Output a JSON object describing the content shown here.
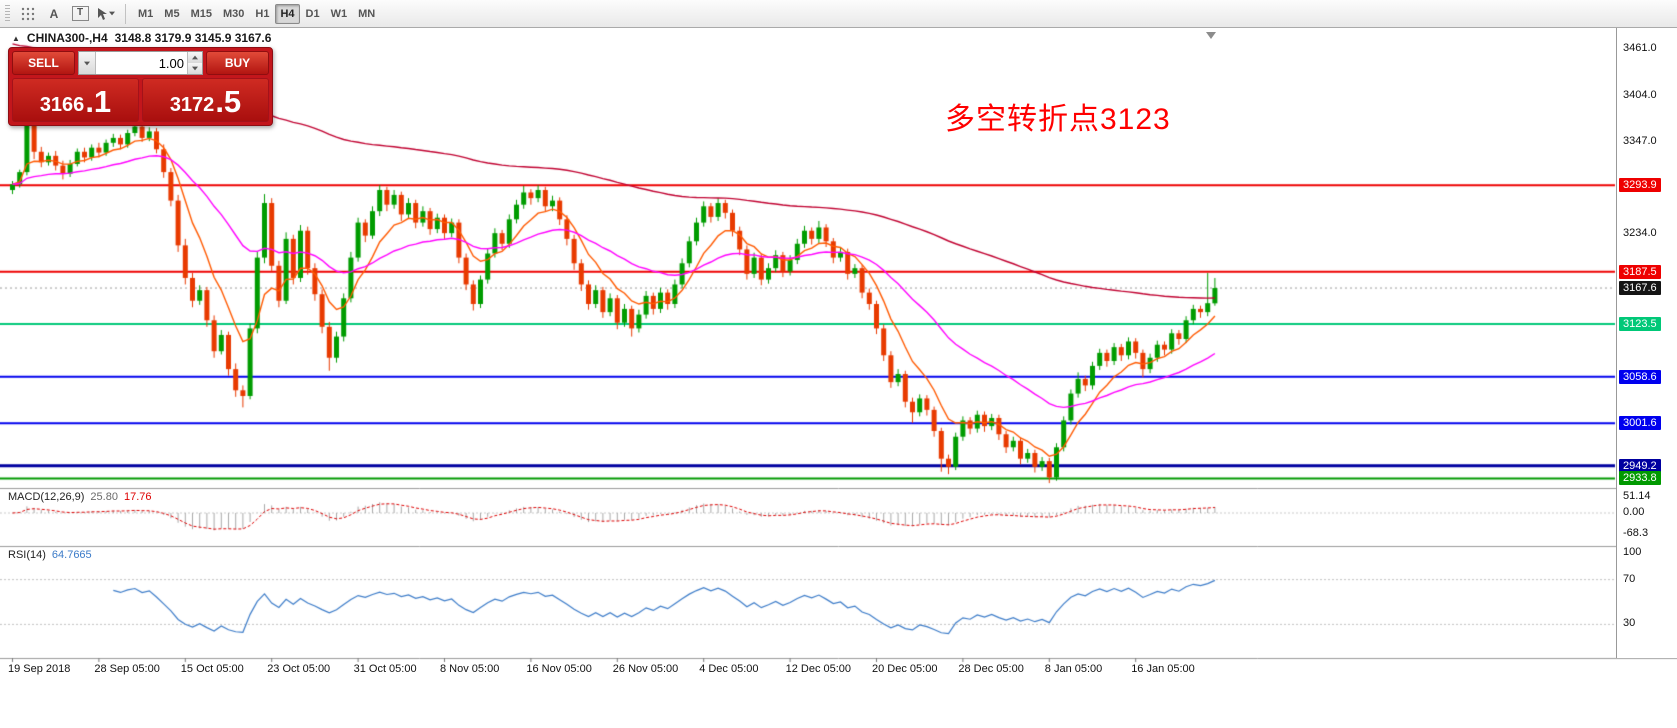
{
  "toolbar": {
    "text_tool": "A",
    "label_tool": "T",
    "timeframes": [
      "M1",
      "M5",
      "M15",
      "M30",
      "H1",
      "H4",
      "D1",
      "W1",
      "MN"
    ],
    "active_timeframe": "H4"
  },
  "header": {
    "toggle_icon": "▲",
    "symbol": "CHINA300-,H4",
    "ohlc": "3148.8 3179.9 3145.9 3167.6"
  },
  "trade_panel": {
    "sell_label": "SELL",
    "buy_label": "BUY",
    "volume": "1.00",
    "sell_price": {
      "main": "3166",
      "big": ".1"
    },
    "buy_price": {
      "main": "3172",
      "big": ".5"
    },
    "panel_color": "#c3161c"
  },
  "annotation": {
    "text": "多空转折点3123",
    "color": "#ff0000"
  },
  "price_axis": {
    "ticks": [
      {
        "label": "3461.0",
        "value": 3461.0
      },
      {
        "label": "3404.0",
        "value": 3404.0
      },
      {
        "label": "3347.0",
        "value": 3347.0
      },
      {
        "label": "3234.0",
        "value": 3234.0
      }
    ],
    "levels": [
      {
        "label": "3293.9",
        "value": 3293.9,
        "color": "#ee0000",
        "width": 2
      },
      {
        "label": "3187.5",
        "value": 3187.5,
        "color": "#ee0000",
        "width": 2
      },
      {
        "label": "3123.5",
        "value": 3123.5,
        "color": "#00c878",
        "width": 2
      },
      {
        "label": "3058.6",
        "value": 3058.6,
        "color": "#0000ee",
        "width": 2
      },
      {
        "label": "3001.6",
        "value": 3001.6,
        "color": "#0000ee",
        "width": 2
      },
      {
        "label": "2949.2",
        "value": 2949.2,
        "color": "#0000a0",
        "width": 3
      },
      {
        "label": "2933.8",
        "value": 2933.8,
        "color": "#009900",
        "width": 2
      }
    ],
    "current": {
      "label": "3167.6",
      "value": 3167.6,
      "color": "#141414"
    }
  },
  "macd_panel": {
    "name": "MACD(12,26,9)",
    "value": "25.80",
    "signal": "17.76",
    "histogram_color": "#a8a8a8",
    "signal_color": "#dd0000",
    "axis": [
      {
        "label": "51.14",
        "value": 51.14
      },
      {
        "label": "0.00",
        "value": 0
      },
      {
        "label": "-68.3",
        "value": -68.3
      }
    ]
  },
  "rsi_panel": {
    "name": "RSI(14)",
    "value": "64.7665",
    "line_color": "#3b7bc8",
    "levels": [
      70,
      30
    ],
    "axis": [
      {
        "label": "100",
        "value": 100
      },
      {
        "label": "70",
        "value": 70
      },
      {
        "label": "30",
        "value": 30
      }
    ]
  },
  "time_axis": [
    "19 Sep 2018",
    "28 Sep 05:00",
    "15 Oct 05:00",
    "23 Oct 05:00",
    "31 Oct 05:00",
    "8 Nov 05:00",
    "16 Nov 05:00",
    "26 Nov 05:00",
    "4 Dec 05:00",
    "12 Dec 05:00",
    "20 Dec 05:00",
    "28 Dec 05:00",
    "8 Jan 05:00",
    "16 Jan 05:00"
  ],
  "chart_data": {
    "type": "candlestick",
    "symbol": "CHINA300-",
    "timeframe": "H4",
    "up_color": "#009c00",
    "down_color": "#e83a00",
    "y_min": 2922,
    "y_max": 3487,
    "x_label_every": 12,
    "ma_lines": [
      {
        "name": "ema-fast",
        "color": "#ff5a00",
        "period": 8
      },
      {
        "name": "ema-mid",
        "color": "#ff00ff",
        "period": 30
      },
      {
        "name": "ema-slow",
        "color": "#c00030",
        "period": 140,
        "seed": 3470
      }
    ],
    "ohlc": [
      [
        3288,
        3299,
        3283,
        3295
      ],
      [
        3295,
        3313,
        3291,
        3310
      ],
      [
        3310,
        3402,
        3306,
        3396
      ],
      [
        3396,
        3404,
        3326,
        3335
      ],
      [
        3335,
        3341,
        3316,
        3322
      ],
      [
        3322,
        3334,
        3318,
        3330
      ],
      [
        3330,
        3336,
        3312,
        3318
      ],
      [
        3318,
        3324,
        3301,
        3308
      ],
      [
        3308,
        3325,
        3304,
        3320
      ],
      [
        3320,
        3339,
        3317,
        3335
      ],
      [
        3335,
        3340,
        3322,
        3328
      ],
      [
        3328,
        3344,
        3324,
        3340
      ],
      [
        3340,
        3346,
        3328,
        3334
      ],
      [
        3334,
        3350,
        3330,
        3346
      ],
      [
        3346,
        3357,
        3341,
        3352
      ],
      [
        3352,
        3356,
        3338,
        3344
      ],
      [
        3344,
        3362,
        3340,
        3358
      ],
      [
        3358,
        3381,
        3354,
        3366
      ],
      [
        3366,
        3372,
        3347,
        3352
      ],
      [
        3352,
        3365,
        3348,
        3360
      ],
      [
        3360,
        3364,
        3333,
        3338
      ],
      [
        3338,
        3344,
        3303,
        3310
      ],
      [
        3310,
        3315,
        3268,
        3275
      ],
      [
        3275,
        3282,
        3212,
        3220
      ],
      [
        3220,
        3228,
        3172,
        3180
      ],
      [
        3180,
        3186,
        3144,
        3152
      ],
      [
        3152,
        3171,
        3147,
        3165
      ],
      [
        3165,
        3169,
        3120,
        3128
      ],
      [
        3128,
        3134,
        3082,
        3090
      ],
      [
        3090,
        3116,
        3086,
        3110
      ],
      [
        3110,
        3114,
        3060,
        3068
      ],
      [
        3068,
        3075,
        3034,
        3042
      ],
      [
        3042,
        3048,
        3021,
        3035
      ],
      [
        3035,
        3124,
        3031,
        3118
      ],
      [
        3118,
        3212,
        3112,
        3205
      ],
      [
        3205,
        3283,
        3198,
        3272
      ],
      [
        3272,
        3278,
        3188,
        3195
      ],
      [
        3195,
        3201,
        3144,
        3152
      ],
      [
        3152,
        3236,
        3148,
        3228
      ],
      [
        3228,
        3233,
        3172,
        3180
      ],
      [
        3180,
        3245,
        3175,
        3238
      ],
      [
        3238,
        3243,
        3184,
        3192
      ],
      [
        3192,
        3198,
        3152,
        3160
      ],
      [
        3160,
        3166,
        3112,
        3120
      ],
      [
        3120,
        3126,
        3066,
        3082
      ],
      [
        3082,
        3114,
        3076,
        3108
      ],
      [
        3108,
        3161,
        3102,
        3155
      ],
      [
        3155,
        3212,
        3150,
        3205
      ],
      [
        3205,
        3254,
        3200,
        3248
      ],
      [
        3248,
        3252,
        3224,
        3232
      ],
      [
        3232,
        3268,
        3228,
        3262
      ],
      [
        3262,
        3294,
        3256,
        3288
      ],
      [
        3288,
        3292,
        3262,
        3270
      ],
      [
        3270,
        3288,
        3265,
        3282
      ],
      [
        3282,
        3286,
        3250,
        3258
      ],
      [
        3258,
        3278,
        3253,
        3272
      ],
      [
        3272,
        3276,
        3241,
        3248
      ],
      [
        3248,
        3268,
        3243,
        3262
      ],
      [
        3262,
        3266,
        3233,
        3240
      ],
      [
        3240,
        3259,
        3235,
        3254
      ],
      [
        3254,
        3258,
        3228,
        3235
      ],
      [
        3235,
        3253,
        3230,
        3248
      ],
      [
        3248,
        3252,
        3198,
        3205
      ],
      [
        3205,
        3210,
        3165,
        3172
      ],
      [
        3172,
        3177,
        3140,
        3148
      ],
      [
        3148,
        3183,
        3143,
        3178
      ],
      [
        3178,
        3216,
        3173,
        3210
      ],
      [
        3210,
        3241,
        3205,
        3235
      ],
      [
        3235,
        3239,
        3214,
        3222
      ],
      [
        3222,
        3258,
        3217,
        3252
      ],
      [
        3252,
        3276,
        3247,
        3270
      ],
      [
        3270,
        3293,
        3265,
        3285
      ],
      [
        3285,
        3289,
        3270,
        3278
      ],
      [
        3278,
        3294,
        3273,
        3288
      ],
      [
        3288,
        3292,
        3261,
        3268
      ],
      [
        3268,
        3281,
        3262,
        3275
      ],
      [
        3275,
        3279,
        3245,
        3252
      ],
      [
        3252,
        3257,
        3220,
        3228
      ],
      [
        3228,
        3233,
        3190,
        3198
      ],
      [
        3198,
        3203,
        3164,
        3172
      ],
      [
        3172,
        3177,
        3141,
        3148
      ],
      [
        3148,
        3171,
        3143,
        3165
      ],
      [
        3165,
        3169,
        3131,
        3138
      ],
      [
        3138,
        3161,
        3133,
        3155
      ],
      [
        3155,
        3159,
        3117,
        3125
      ],
      [
        3125,
        3148,
        3120,
        3142
      ],
      [
        3142,
        3146,
        3108,
        3118
      ],
      [
        3118,
        3141,
        3113,
        3135
      ],
      [
        3135,
        3164,
        3130,
        3158
      ],
      [
        3158,
        3162,
        3135,
        3142
      ],
      [
        3142,
        3168,
        3137,
        3162
      ],
      [
        3162,
        3166,
        3141,
        3148
      ],
      [
        3148,
        3178,
        3143,
        3172
      ],
      [
        3172,
        3204,
        3167,
        3198
      ],
      [
        3198,
        3231,
        3193,
        3225
      ],
      [
        3225,
        3254,
        3220,
        3248
      ],
      [
        3248,
        3274,
        3243,
        3268
      ],
      [
        3268,
        3272,
        3248,
        3255
      ],
      [
        3255,
        3278,
        3250,
        3272
      ],
      [
        3272,
        3276,
        3253,
        3260
      ],
      [
        3260,
        3264,
        3231,
        3238
      ],
      [
        3238,
        3243,
        3208,
        3215
      ],
      [
        3215,
        3220,
        3178,
        3185
      ],
      [
        3185,
        3211,
        3180,
        3205
      ],
      [
        3205,
        3209,
        3171,
        3178
      ],
      [
        3178,
        3198,
        3173,
        3192
      ],
      [
        3192,
        3214,
        3187,
        3208
      ],
      [
        3208,
        3212,
        3181,
        3188
      ],
      [
        3188,
        3208,
        3183,
        3202
      ],
      [
        3202,
        3228,
        3197,
        3222
      ],
      [
        3222,
        3244,
        3217,
        3238
      ],
      [
        3238,
        3242,
        3221,
        3228
      ],
      [
        3228,
        3250,
        3223,
        3242
      ],
      [
        3242,
        3246,
        3218,
        3225
      ],
      [
        3225,
        3229,
        3198,
        3205
      ],
      [
        3205,
        3218,
        3200,
        3212
      ],
      [
        3212,
        3216,
        3178,
        3185
      ],
      [
        3185,
        3197,
        3180,
        3192
      ],
      [
        3192,
        3196,
        3155,
        3162
      ],
      [
        3162,
        3167,
        3141,
        3148
      ],
      [
        3148,
        3152,
        3111,
        3118
      ],
      [
        3118,
        3123,
        3078,
        3085
      ],
      [
        3085,
        3090,
        3045,
        3052
      ],
      [
        3052,
        3068,
        3047,
        3062
      ],
      [
        3062,
        3066,
        3021,
        3028
      ],
      [
        3028,
        3033,
        3002,
        3015
      ],
      [
        3015,
        3037,
        3010,
        3032
      ],
      [
        3032,
        3036,
        3011,
        3018
      ],
      [
        3018,
        3022,
        2985,
        2992
      ],
      [
        2992,
        2996,
        2942,
        2958
      ],
      [
        2958,
        2963,
        2939,
        2948
      ],
      [
        2948,
        2990,
        2944,
        2985
      ],
      [
        2985,
        3010,
        2980,
        3005
      ],
      [
        3005,
        3009,
        2988,
        2995
      ],
      [
        2995,
        3017,
        2990,
        3012
      ],
      [
        3012,
        3016,
        2991,
        2998
      ],
      [
        2998,
        3013,
        2993,
        3008
      ],
      [
        3008,
        3012,
        2981,
        2988
      ],
      [
        2988,
        2992,
        2965,
        2972
      ],
      [
        2972,
        2985,
        2967,
        2980
      ],
      [
        2980,
        2984,
        2951,
        2958
      ],
      [
        2958,
        2970,
        2953,
        2965
      ],
      [
        2965,
        2969,
        2941,
        2948
      ],
      [
        2948,
        2960,
        2943,
        2955
      ],
      [
        2955,
        2959,
        2928,
        2935
      ],
      [
        2935,
        2977,
        2931,
        2972
      ],
      [
        2972,
        3010,
        2967,
        3005
      ],
      [
        3005,
        3043,
        3000,
        3038
      ],
      [
        3038,
        3064,
        3033,
        3056
      ],
      [
        3056,
        3060,
        3041,
        3048
      ],
      [
        3048,
        3077,
        3043,
        3072
      ],
      [
        3072,
        3093,
        3067,
        3088
      ],
      [
        3088,
        3092,
        3071,
        3078
      ],
      [
        3078,
        3100,
        3073,
        3095
      ],
      [
        3095,
        3099,
        3078,
        3085
      ],
      [
        3085,
        3107,
        3080,
        3102
      ],
      [
        3102,
        3106,
        3081,
        3088
      ],
      [
        3088,
        3092,
        3058,
        3068
      ],
      [
        3068,
        3087,
        3063,
        3082
      ],
      [
        3082,
        3103,
        3077,
        3098
      ],
      [
        3098,
        3102,
        3085,
        3092
      ],
      [
        3092,
        3117,
        3087,
        3112
      ],
      [
        3112,
        3116,
        3098,
        3105
      ],
      [
        3105,
        3133,
        3100,
        3128
      ],
      [
        3128,
        3147,
        3123,
        3142
      ],
      [
        3142,
        3146,
        3131,
        3138
      ],
      [
        3138,
        3186,
        3133,
        3149
      ],
      [
        3148.8,
        3179.9,
        3145.9,
        3167.6
      ]
    ]
  }
}
